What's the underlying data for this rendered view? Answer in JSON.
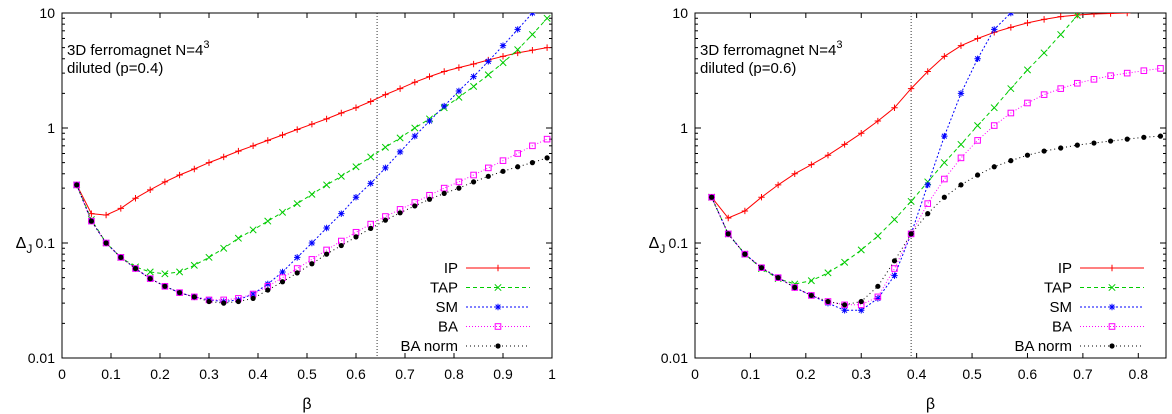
{
  "chart_data": [
    {
      "type": "line",
      "title": "",
      "annotation": {
        "line1": "3D ferromagnet N=4",
        "sup": "3",
        "line2": "diluted (p=0.4)"
      },
      "xlabel": "β",
      "ylabel": "Δ",
      "ylabel_sub": "J",
      "xlim": [
        0,
        1
      ],
      "ylim": [
        0.01,
        10
      ],
      "yscale": "log",
      "xticks": [
        "0",
        "0.1",
        "0.2",
        "0.3",
        "0.4",
        "0.5",
        "0.6",
        "0.7",
        "0.8",
        "0.9",
        "1"
      ],
      "yticks": [
        "0.01",
        "0.1",
        "1",
        "10"
      ],
      "vline": 0.643,
      "legend_position": "bottom-right",
      "series": [
        {
          "name": "IP",
          "color": "#ff0000",
          "marker": "plus",
          "dash": "none",
          "x": [
            0.03,
            0.06,
            0.09,
            0.12,
            0.15,
            0.18,
            0.21,
            0.24,
            0.27,
            0.3,
            0.33,
            0.36,
            0.39,
            0.42,
            0.45,
            0.48,
            0.51,
            0.54,
            0.57,
            0.6,
            0.63,
            0.66,
            0.69,
            0.72,
            0.75,
            0.78,
            0.81,
            0.84,
            0.87,
            0.9,
            0.93,
            0.96,
            0.99
          ],
          "y": [
            0.32,
            0.18,
            0.175,
            0.2,
            0.245,
            0.29,
            0.34,
            0.39,
            0.44,
            0.5,
            0.56,
            0.63,
            0.7,
            0.78,
            0.87,
            0.97,
            1.08,
            1.2,
            1.35,
            1.5,
            1.7,
            1.95,
            2.2,
            2.5,
            2.8,
            3.1,
            3.35,
            3.6,
            3.9,
            4.2,
            4.5,
            4.75,
            5.0
          ]
        },
        {
          "name": "TAP",
          "color": "#00cc00",
          "marker": "x",
          "dash": "4,3",
          "x": [
            0.03,
            0.06,
            0.09,
            0.12,
            0.15,
            0.18,
            0.21,
            0.24,
            0.27,
            0.3,
            0.33,
            0.36,
            0.39,
            0.42,
            0.45,
            0.48,
            0.51,
            0.54,
            0.57,
            0.6,
            0.63,
            0.66,
            0.69,
            0.72,
            0.75,
            0.78,
            0.81,
            0.84,
            0.87,
            0.9,
            0.93,
            0.96,
            0.99
          ],
          "y": [
            0.32,
            0.16,
            0.1,
            0.075,
            0.062,
            0.056,
            0.054,
            0.056,
            0.064,
            0.075,
            0.09,
            0.11,
            0.13,
            0.155,
            0.185,
            0.22,
            0.265,
            0.32,
            0.38,
            0.46,
            0.56,
            0.68,
            0.82,
            1.0,
            1.2,
            1.5,
            1.85,
            2.3,
            2.9,
            3.7,
            4.8,
            6.5,
            9.0
          ]
        },
        {
          "name": "SM",
          "color": "#0000ff",
          "marker": "star",
          "dash": "2,2",
          "x": [
            0.03,
            0.06,
            0.09,
            0.12,
            0.15,
            0.18,
            0.21,
            0.24,
            0.27,
            0.3,
            0.33,
            0.36,
            0.39,
            0.42,
            0.45,
            0.48,
            0.51,
            0.54,
            0.57,
            0.6,
            0.63,
            0.66,
            0.69,
            0.72,
            0.75,
            0.78,
            0.81,
            0.84,
            0.87,
            0.9,
            0.93,
            0.96
          ],
          "y": [
            0.32,
            0.155,
            0.1,
            0.075,
            0.06,
            0.049,
            0.042,
            0.037,
            0.034,
            0.032,
            0.031,
            0.032,
            0.036,
            0.044,
            0.056,
            0.075,
            0.1,
            0.135,
            0.18,
            0.25,
            0.33,
            0.45,
            0.62,
            0.85,
            1.15,
            1.55,
            2.1,
            2.8,
            3.8,
            5.2,
            7.2,
            10.0
          ]
        },
        {
          "name": "BA",
          "color": "#ff00ff",
          "marker": "square",
          "dash": "1,2",
          "x": [
            0.03,
            0.06,
            0.09,
            0.12,
            0.15,
            0.18,
            0.21,
            0.24,
            0.27,
            0.3,
            0.33,
            0.36,
            0.39,
            0.42,
            0.45,
            0.48,
            0.51,
            0.54,
            0.57,
            0.6,
            0.63,
            0.66,
            0.69,
            0.72,
            0.75,
            0.78,
            0.81,
            0.84,
            0.87,
            0.9,
            0.93,
            0.96,
            0.99
          ],
          "y": [
            0.32,
            0.155,
            0.1,
            0.075,
            0.06,
            0.049,
            0.042,
            0.037,
            0.034,
            0.032,
            0.032,
            0.033,
            0.036,
            0.042,
            0.05,
            0.06,
            0.072,
            0.087,
            0.104,
            0.124,
            0.146,
            0.17,
            0.196,
            0.225,
            0.26,
            0.3,
            0.34,
            0.39,
            0.45,
            0.52,
            0.6,
            0.7,
            0.8
          ]
        },
        {
          "name": "BA norm",
          "color": "#000000",
          "marker": "dot",
          "dash": "1,3",
          "x": [
            0.03,
            0.06,
            0.09,
            0.12,
            0.15,
            0.18,
            0.21,
            0.24,
            0.27,
            0.3,
            0.33,
            0.36,
            0.39,
            0.42,
            0.45,
            0.48,
            0.51,
            0.54,
            0.57,
            0.6,
            0.63,
            0.66,
            0.69,
            0.72,
            0.75,
            0.78,
            0.81,
            0.84,
            0.87,
            0.9,
            0.93,
            0.96,
            0.99
          ],
          "y": [
            0.32,
            0.155,
            0.1,
            0.075,
            0.06,
            0.049,
            0.042,
            0.037,
            0.034,
            0.031,
            0.03,
            0.031,
            0.033,
            0.039,
            0.046,
            0.055,
            0.066,
            0.08,
            0.095,
            0.113,
            0.134,
            0.158,
            0.183,
            0.21,
            0.24,
            0.27,
            0.3,
            0.34,
            0.38,
            0.42,
            0.46,
            0.5,
            0.55
          ]
        }
      ]
    },
    {
      "type": "line",
      "title": "",
      "annotation": {
        "line1": "3D ferromagnet N=4",
        "sup": "3",
        "line2": "diluted (p=0.6)"
      },
      "xlabel": "β",
      "ylabel": "Δ",
      "ylabel_sub": "J",
      "xlim": [
        0,
        0.85
      ],
      "ylim": [
        0.01,
        10
      ],
      "yscale": "log",
      "xticks": [
        "0",
        "0.1",
        "0.2",
        "0.3",
        "0.4",
        "0.5",
        "0.6",
        "0.7",
        "0.8"
      ],
      "yticks": [
        "0.01",
        "0.1",
        "1",
        "10"
      ],
      "vline": 0.39,
      "legend_position": "bottom-right",
      "series": [
        {
          "name": "IP",
          "color": "#ff0000",
          "marker": "plus",
          "dash": "none",
          "x": [
            0.03,
            0.06,
            0.09,
            0.12,
            0.15,
            0.18,
            0.21,
            0.24,
            0.27,
            0.3,
            0.33,
            0.36,
            0.39,
            0.42,
            0.45,
            0.48,
            0.51,
            0.54,
            0.57,
            0.6,
            0.63,
            0.66,
            0.69,
            0.72,
            0.75,
            0.78
          ],
          "y": [
            0.25,
            0.165,
            0.19,
            0.25,
            0.32,
            0.4,
            0.48,
            0.58,
            0.72,
            0.9,
            1.15,
            1.5,
            2.2,
            3.1,
            4.2,
            5.2,
            6.0,
            6.8,
            7.5,
            8.2,
            8.8,
            9.3,
            9.6,
            9.8,
            9.9,
            10.0
          ]
        },
        {
          "name": "TAP",
          "color": "#00cc00",
          "marker": "x",
          "dash": "4,3",
          "x": [
            0.03,
            0.06,
            0.09,
            0.12,
            0.15,
            0.18,
            0.21,
            0.24,
            0.27,
            0.3,
            0.33,
            0.36,
            0.39,
            0.42,
            0.45,
            0.48,
            0.51,
            0.54,
            0.57,
            0.6,
            0.63,
            0.66,
            0.69
          ],
          "y": [
            0.25,
            0.12,
            0.08,
            0.06,
            0.049,
            0.044,
            0.047,
            0.055,
            0.068,
            0.087,
            0.115,
            0.16,
            0.23,
            0.34,
            0.5,
            0.72,
            1.05,
            1.5,
            2.2,
            3.2,
            4.5,
            6.5,
            9.5
          ]
        },
        {
          "name": "SM",
          "color": "#0000ff",
          "marker": "star",
          "dash": "2,2",
          "x": [
            0.03,
            0.06,
            0.09,
            0.12,
            0.15,
            0.18,
            0.21,
            0.24,
            0.27,
            0.3,
            0.33,
            0.36,
            0.39,
            0.42,
            0.45,
            0.48,
            0.51,
            0.54,
            0.57
          ],
          "y": [
            0.25,
            0.12,
            0.08,
            0.061,
            0.05,
            0.041,
            0.035,
            0.03,
            0.026,
            0.026,
            0.033,
            0.052,
            0.12,
            0.32,
            0.85,
            2.0,
            4.0,
            7.2,
            10.0
          ]
        },
        {
          "name": "BA",
          "color": "#ff00ff",
          "marker": "square",
          "dash": "1,2",
          "x": [
            0.03,
            0.06,
            0.09,
            0.12,
            0.15,
            0.18,
            0.21,
            0.24,
            0.27,
            0.3,
            0.33,
            0.36,
            0.39,
            0.42,
            0.45,
            0.48,
            0.51,
            0.54,
            0.57,
            0.6,
            0.63,
            0.66,
            0.69,
            0.72,
            0.75,
            0.78,
            0.81,
            0.84
          ],
          "y": [
            0.25,
            0.12,
            0.08,
            0.061,
            0.05,
            0.041,
            0.035,
            0.031,
            0.029,
            0.029,
            0.034,
            0.06,
            0.12,
            0.22,
            0.36,
            0.55,
            0.78,
            1.05,
            1.35,
            1.65,
            1.95,
            2.2,
            2.45,
            2.65,
            2.85,
            3.0,
            3.15,
            3.3
          ]
        },
        {
          "name": "BA norm",
          "color": "#000000",
          "marker": "dot",
          "dash": "1,3",
          "x": [
            0.03,
            0.06,
            0.09,
            0.12,
            0.15,
            0.18,
            0.21,
            0.24,
            0.27,
            0.3,
            0.33,
            0.36,
            0.39,
            0.42,
            0.45,
            0.48,
            0.51,
            0.54,
            0.57,
            0.6,
            0.63,
            0.66,
            0.69,
            0.72,
            0.75,
            0.78,
            0.81,
            0.84
          ],
          "y": [
            0.25,
            0.12,
            0.08,
            0.061,
            0.05,
            0.041,
            0.035,
            0.031,
            0.029,
            0.031,
            0.042,
            0.07,
            0.12,
            0.18,
            0.25,
            0.32,
            0.39,
            0.46,
            0.52,
            0.58,
            0.63,
            0.67,
            0.71,
            0.74,
            0.77,
            0.8,
            0.83,
            0.85
          ]
        }
      ]
    }
  ]
}
